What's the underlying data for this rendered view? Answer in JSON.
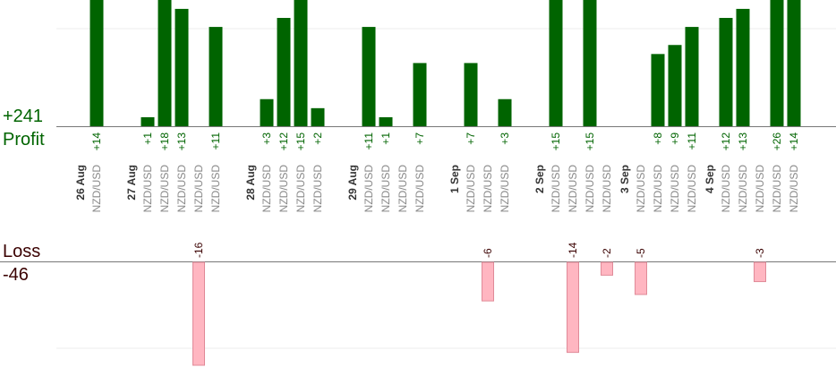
{
  "totals": {
    "profit": "+241",
    "profit_label": "Profit",
    "loss_label": "Loss",
    "loss": "-46"
  },
  "colors": {
    "profit_bar": "#006400",
    "loss_bar": "#ffb6c1",
    "loss_bar_stroke": "#e08a98",
    "profit_text": "#006400",
    "loss_text": "#3a0000",
    "tick_text": "#888888",
    "date_text": "#333333",
    "grid": "#eeeeee",
    "axis": "#777777"
  },
  "chart_data": {
    "type": "bar",
    "ylim_profit": [
      0,
      12
    ],
    "ylim_loss": [
      -16,
      0
    ],
    "grid": true,
    "dates": [
      {
        "label": "26 Aug",
        "before_column": 0
      },
      {
        "label": "27 Aug",
        "before_column": 3
      },
      {
        "label": "28 Aug",
        "before_column": 10
      },
      {
        "label": "29 Aug",
        "before_column": 16
      },
      {
        "label": "1 Sep",
        "before_column": 22
      },
      {
        "label": "2 Sep",
        "before_column": 27
      },
      {
        "label": "3 Sep",
        "before_column": 32
      },
      {
        "label": "4 Sep",
        "before_column": 37
      }
    ],
    "columns": [
      {
        "instrument": "NZD/USD",
        "profit": 14,
        "profit_label": "+14"
      },
      {
        "instrument": "",
        "profit": null
      },
      {
        "instrument": "",
        "profit": null
      },
      {
        "instrument": "NZD/USD",
        "profit": 1,
        "profit_label": "+1"
      },
      {
        "instrument": "NZD/USD",
        "profit": 18,
        "profit_label": "+18"
      },
      {
        "instrument": "NZD/USD",
        "profit": 13,
        "profit_label": "+13"
      },
      {
        "instrument": "NZD/USD",
        "loss": -16,
        "loss_label": "-16"
      },
      {
        "instrument": "NZD/USD",
        "profit": 11,
        "profit_label": "+11"
      },
      {
        "instrument": "",
        "profit": null
      },
      {
        "instrument": "",
        "profit": null
      },
      {
        "instrument": "NZD/USD",
        "profit": 3,
        "profit_label": "+3"
      },
      {
        "instrument": "NZD/USD",
        "profit": 12,
        "profit_label": "+12"
      },
      {
        "instrument": "NZD/USD",
        "profit": 15,
        "profit_label": "+15"
      },
      {
        "instrument": "NZD/USD",
        "profit": 2,
        "profit_label": "+2"
      },
      {
        "instrument": "",
        "profit": null
      },
      {
        "instrument": "",
        "profit": null
      },
      {
        "instrument": "NZD/USD",
        "profit": 11,
        "profit_label": "+11"
      },
      {
        "instrument": "NZD/USD",
        "profit": 1,
        "profit_label": "+1"
      },
      {
        "instrument": "NZD/USD",
        "profit": null
      },
      {
        "instrument": "NZD/USD",
        "profit": 7,
        "profit_label": "+7"
      },
      {
        "instrument": "",
        "profit": null
      },
      {
        "instrument": "",
        "profit": null
      },
      {
        "instrument": "NZD/USD",
        "profit": 7,
        "profit_label": "+7"
      },
      {
        "instrument": "NZD/USD",
        "loss": -6,
        "loss_label": "-6"
      },
      {
        "instrument": "NZD/USD",
        "profit": 3,
        "profit_label": "+3"
      },
      {
        "instrument": "",
        "profit": null
      },
      {
        "instrument": "",
        "profit": null
      },
      {
        "instrument": "NZD/USD",
        "profit": 15,
        "profit_label": "+15"
      },
      {
        "instrument": "NZD/USD",
        "loss": -14,
        "loss_label": "-14"
      },
      {
        "instrument": "NZD/USD",
        "profit": 15,
        "profit_label": "+15"
      },
      {
        "instrument": "NZD/USD",
        "loss": -2,
        "loss_label": "-2"
      },
      {
        "instrument": "",
        "profit": null
      },
      {
        "instrument": "NZD/USD",
        "loss": -5,
        "loss_label": "-5"
      },
      {
        "instrument": "NZD/USD",
        "profit": 8,
        "profit_label": "+8"
      },
      {
        "instrument": "NZD/USD",
        "profit": 9,
        "profit_label": "+9"
      },
      {
        "instrument": "NZD/USD",
        "profit": 11,
        "profit_label": "+11"
      },
      {
        "instrument": "",
        "profit": null
      },
      {
        "instrument": "NZD/USD",
        "profit": 12,
        "profit_label": "+12"
      },
      {
        "instrument": "NZD/USD",
        "profit": 13,
        "profit_label": "+13"
      },
      {
        "instrument": "NZD/USD",
        "loss": -3,
        "loss_label": "-3"
      },
      {
        "instrument": "NZD/USD",
        "profit": 26,
        "profit_label": "+26"
      },
      {
        "instrument": "NZD/USD",
        "profit": 14,
        "profit_label": "+14"
      }
    ]
  }
}
